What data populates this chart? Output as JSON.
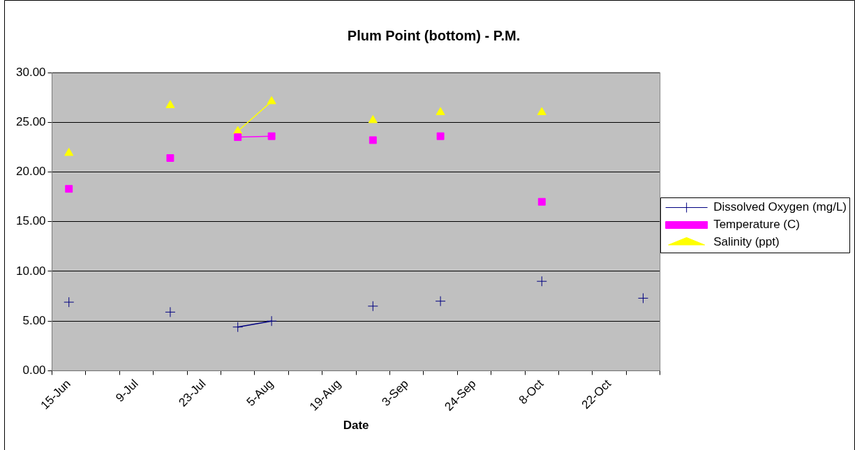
{
  "chart_data": {
    "type": "line",
    "title": "Plum Point (bottom) - P.M.",
    "xlabel": "Date",
    "categories": [
      "15-Jun",
      null,
      "9-Jul",
      null,
      "23-Jul",
      null,
      "5-Aug",
      null,
      "19-Aug",
      null,
      "3-Sep",
      null,
      "24-Sep",
      null,
      "8-Oct",
      null,
      "22-Oct",
      null
    ],
    "series": [
      {
        "name": "Dissolved Oxygen (mg/L)",
        "color": "#000080",
        "marker": "cross",
        "values": [
          6.9,
          null,
          null,
          5.9,
          null,
          4.4,
          5.0,
          null,
          null,
          6.5,
          null,
          7.0,
          null,
          null,
          9.0,
          null,
          null,
          7.3
        ]
      },
      {
        "name": "Temperature (C)",
        "color": "#ff00ff",
        "marker": "square",
        "values": [
          18.3,
          null,
          null,
          21.4,
          null,
          23.5,
          23.6,
          null,
          null,
          23.2,
          null,
          23.6,
          null,
          null,
          17.0,
          null,
          null,
          null
        ]
      },
      {
        "name": "Salinity (ppt)",
        "color": "#ffff00",
        "marker": "triangle",
        "values": [
          21.9,
          null,
          null,
          26.7,
          null,
          24.1,
          27.1,
          null,
          null,
          25.2,
          null,
          26.0,
          null,
          null,
          26.0,
          null,
          null,
          null
        ]
      }
    ],
    "ylim": [
      0,
      30
    ],
    "yticks": [
      {
        "value": 0,
        "label": "0.00"
      },
      {
        "value": 5,
        "label": "5.00"
      },
      {
        "value": 10,
        "label": "10.00"
      },
      {
        "value": 15,
        "label": "15.00"
      },
      {
        "value": 20,
        "label": "20.00"
      },
      {
        "value": 25,
        "label": "25.00"
      },
      {
        "value": 30,
        "label": "30.00"
      }
    ],
    "grid": "y",
    "legend": "right",
    "line_style": "solid"
  }
}
